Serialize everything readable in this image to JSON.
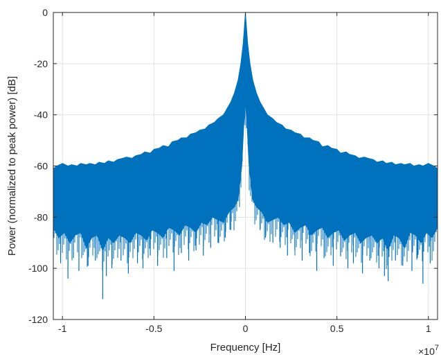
{
  "chart_data": {
    "type": "area",
    "title": "",
    "xlabel": "Frequency [Hz]",
    "ylabel": "Power (normalized to peak power) [dB]",
    "x_exponent_base": "×10",
    "x_exponent_power": "7",
    "xlim": [
      -10500000,
      10500000
    ],
    "ylim": [
      -120,
      0
    ],
    "x_ticks": [
      -10000000,
      -5000000,
      0,
      5000000,
      10000000
    ],
    "x_tick_labels": [
      "-1",
      "-0.5",
      "0",
      "0.5",
      "1"
    ],
    "y_ticks": [
      0,
      -20,
      -40,
      -60,
      -80,
      -100,
      -120
    ],
    "y_tick_labels": [
      "0",
      "-20",
      "-40",
      "-60",
      "-80",
      "-100",
      "-120"
    ],
    "grid": true,
    "color": "#0072BD",
    "series": [
      {
        "role": "upper-envelope",
        "x": [
          -10500000,
          -10300000,
          -10000000,
          -9700000,
          -9500000,
          -9200000,
          -9000000,
          -8700000,
          -8500000,
          -8200000,
          -8000000,
          -7700000,
          -7500000,
          -7200000,
          -7000000,
          -6700000,
          -6500000,
          -6200000,
          -6000000,
          -5700000,
          -5500000,
          -5200000,
          -5000000,
          -4700000,
          -4500000,
          -4200000,
          -4000000,
          -3700000,
          -3500000,
          -3200000,
          -3000000,
          -2700000,
          -2500000,
          -2200000,
          -2000000,
          -1700000,
          -1500000,
          -1200000,
          -1000000,
          -800000,
          -600000,
          -400000,
          -250000,
          -120000,
          -50000,
          0,
          50000,
          120000,
          250000,
          400000,
          600000,
          800000,
          1000000,
          1200000,
          1500000,
          1700000,
          2000000,
          2200000,
          2500000,
          2700000,
          3000000,
          3200000,
          3500000,
          3700000,
          4000000,
          4200000,
          4500000,
          4700000,
          5000000,
          5200000,
          5500000,
          5700000,
          6000000,
          6200000,
          6500000,
          6700000,
          7000000,
          7200000,
          7500000,
          7700000,
          8000000,
          8200000,
          8500000,
          8700000,
          9000000,
          9200000,
          9500000,
          9700000,
          10000000,
          10300000,
          10500000
        ],
        "y": [
          -61,
          -60,
          -59,
          -60,
          -59.5,
          -60,
          -59,
          -59.5,
          -59,
          -59.5,
          -58.5,
          -59,
          -58,
          -58.5,
          -57.5,
          -57,
          -56.5,
          -57,
          -56,
          -55.5,
          -54.5,
          -55,
          -53.5,
          -53,
          -52,
          -52.5,
          -50.5,
          -50,
          -49,
          -49,
          -47.5,
          -47,
          -46,
          -45.5,
          -44,
          -43,
          -41.5,
          -40,
          -37.5,
          -35,
          -31.5,
          -26.5,
          -20,
          -12,
          -5,
          0,
          -5,
          -12,
          -20,
          -26.5,
          -31.5,
          -35,
          -37.5,
          -40,
          -41.5,
          -43,
          -44,
          -45.5,
          -46,
          -47,
          -47.5,
          -49,
          -49,
          -50,
          -50.5,
          -52.5,
          -52,
          -53,
          -53.5,
          -55,
          -54.5,
          -55.5,
          -56,
          -57,
          -56.5,
          -57,
          -57.5,
          -58.5,
          -58,
          -59,
          -58.5,
          -59.5,
          -59,
          -59.5,
          -59,
          -60,
          -59.5,
          -60,
          -59,
          -60,
          -61
        ]
      },
      {
        "role": "lower-envelope",
        "x": [
          -10500000,
          -10200000,
          -9900000,
          -9600000,
          -9300000,
          -9000000,
          -8700000,
          -8400000,
          -8100000,
          -7800000,
          -7500000,
          -7200000,
          -6900000,
          -6600000,
          -6300000,
          -6000000,
          -5700000,
          -5400000,
          -5100000,
          -4800000,
          -4500000,
          -4200000,
          -3900000,
          -3600000,
          -3300000,
          -3000000,
          -2700000,
          -2400000,
          -2100000,
          -1800000,
          -1500000,
          -1200000,
          -900000,
          -600000,
          -400000,
          -200000,
          -100000,
          0,
          100000,
          200000,
          400000,
          600000,
          900000,
          1200000,
          1500000,
          1800000,
          2100000,
          2400000,
          2700000,
          3000000,
          3300000,
          3600000,
          3900000,
          4200000,
          4500000,
          4800000,
          5100000,
          5400000,
          5700000,
          6000000,
          6300000,
          6600000,
          6900000,
          7200000,
          7500000,
          7800000,
          8100000,
          8400000,
          8700000,
          9000000,
          9300000,
          9600000,
          9900000,
          10200000,
          10500000
        ],
        "y": [
          -84,
          -88,
          -86,
          -90,
          -87,
          -86,
          -92,
          -88,
          -87,
          -93,
          -88,
          -90,
          -87,
          -88,
          -90,
          -86,
          -87,
          -89,
          -85,
          -86,
          -88,
          -84,
          -85,
          -87,
          -83,
          -84,
          -86,
          -82,
          -83,
          -80,
          -81,
          -82,
          -78,
          -76,
          -73,
          -60,
          -45,
          -35,
          -45,
          -60,
          -73,
          -76,
          -78,
          -82,
          -81,
          -80,
          -83,
          -82,
          -86,
          -84,
          -83,
          -87,
          -85,
          -84,
          -88,
          -86,
          -85,
          -89,
          -87,
          -86,
          -90,
          -88,
          -87,
          -90,
          -88,
          -93,
          -87,
          -88,
          -92,
          -86,
          -87,
          -90,
          -86,
          -88,
          -84
        ]
      },
      {
        "role": "deep-spikes",
        "x": [
          -10100000,
          -9700000,
          -9400000,
          -9100000,
          -8600000,
          -8200000,
          -7800000,
          -7600000,
          -7300000,
          -6800000,
          -6400000,
          -5900000,
          -5600000,
          -5200000,
          -4800000,
          -4300000,
          -3900000,
          -3500000,
          -3100000,
          -2700000,
          -2300000,
          -1900000,
          -1500000,
          -1100000,
          -800000,
          800000,
          1100000,
          1500000,
          1900000,
          2300000,
          2700000,
          3100000,
          3500000,
          3900000,
          4300000,
          4800000,
          5200000,
          5600000,
          5900000,
          6400000,
          6800000,
          7300000,
          7600000,
          7800000,
          8200000,
          8600000,
          9100000,
          9400000,
          9700000,
          10100000
        ],
        "y": [
          -98,
          -104,
          -96,
          -101,
          -99,
          -97,
          -112,
          -103,
          -100,
          -97,
          -102,
          -98,
          -100,
          -95,
          -99,
          -96,
          -101,
          -94,
          -97,
          -93,
          -95,
          -92,
          -90,
          -88,
          -85,
          -85,
          -88,
          -90,
          -92,
          -95,
          -93,
          -97,
          -94,
          -101,
          -96,
          -99,
          -95,
          -100,
          -98,
          -102,
          -97,
          -100,
          -103,
          -105,
          -97,
          -99,
          -101,
          -96,
          -106,
          -98
        ]
      }
    ]
  }
}
